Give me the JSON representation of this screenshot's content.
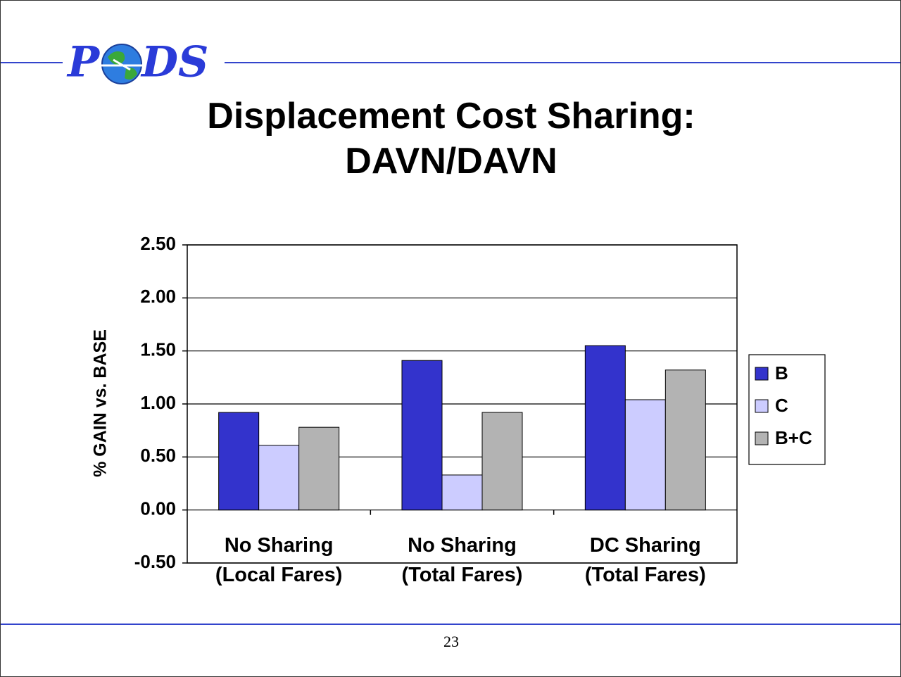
{
  "logo": {
    "left": "P",
    "right": "DS"
  },
  "page_number": "23",
  "chart_data": {
    "type": "bar",
    "title": "Displacement Cost Sharing: DAVN/DAVN",
    "y_label": "% GAIN vs. BASE",
    "categories": [
      "No Sharing (Local Fares)",
      "No Sharing (Total Fares)",
      "DC Sharing (Total Fares)"
    ],
    "series": [
      {
        "name": "B",
        "color": "#3333cc",
        "values": [
          0.92,
          1.41,
          1.55
        ]
      },
      {
        "name": "C",
        "color": "#ccccff",
        "values": [
          0.61,
          0.33,
          1.04
        ]
      },
      {
        "name": "B+C",
        "color": "#b3b3b3",
        "values": [
          0.78,
          0.92,
          1.32
        ]
      }
    ],
    "ylim": [
      -0.5,
      2.5
    ],
    "yticks": [
      {
        "value": -0.5,
        "label": "-0.50"
      },
      {
        "value": 0,
        "label": "0.00"
      },
      {
        "value": 0.5,
        "label": "0.50"
      },
      {
        "value": 1,
        "label": "1.00"
      },
      {
        "value": 1.5,
        "label": "1.50"
      },
      {
        "value": 2,
        "label": "2.00"
      },
      {
        "value": 2.5,
        "label": "2.50"
      }
    ],
    "grid": true,
    "legend": "right"
  }
}
